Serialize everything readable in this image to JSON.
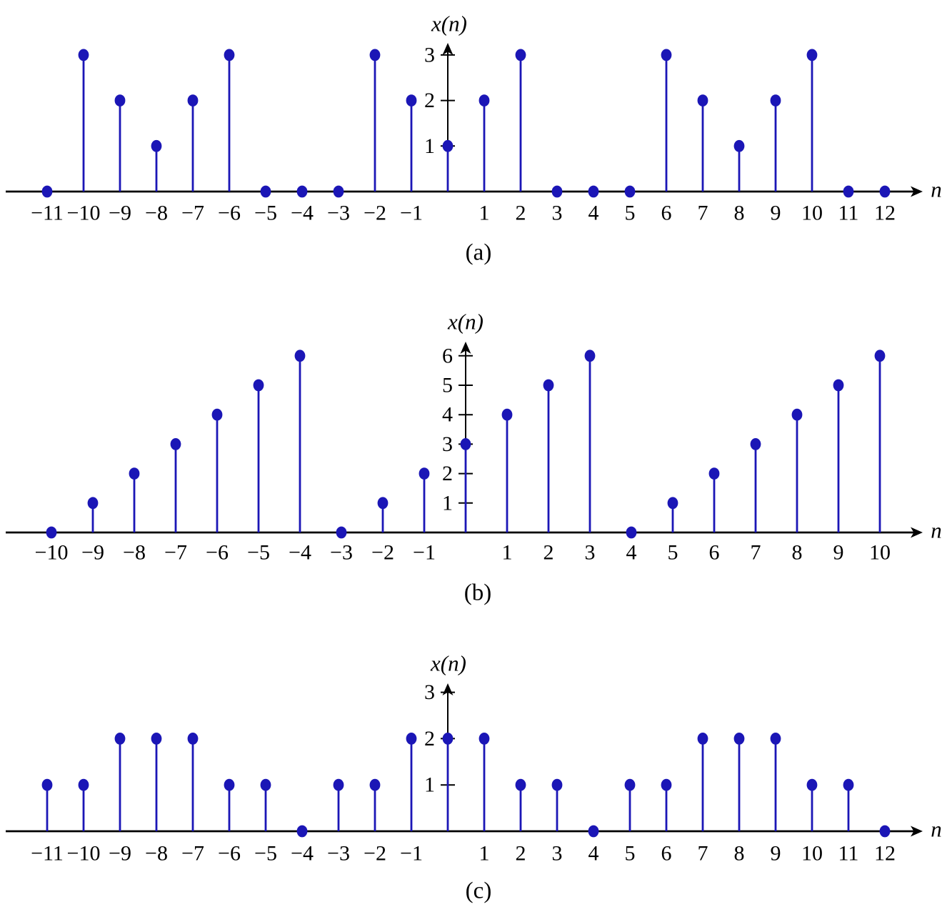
{
  "figure": {
    "colors": {
      "signal_blue": "#1b16b6",
      "axis_black": "#000000",
      "background": "#ffffff"
    }
  },
  "chart_data": [
    {
      "type": "stem",
      "caption": "(a)",
      "ylabel": "x(n)",
      "xlabel": "n",
      "x": [
        -11,
        -10,
        -9,
        -8,
        -7,
        -6,
        -5,
        -4,
        -3,
        -2,
        -1,
        0,
        1,
        2,
        3,
        4,
        5,
        6,
        7,
        8,
        9,
        10,
        11,
        12
      ],
      "values": [
        0,
        3,
        2,
        1,
        2,
        3,
        0,
        0,
        0,
        3,
        2,
        1,
        2,
        3,
        0,
        0,
        0,
        3,
        2,
        1,
        2,
        3,
        0,
        0
      ],
      "y_ticks": [
        1,
        2,
        3
      ],
      "xlim": [
        -11,
        12
      ],
      "ylim": [
        0,
        3.4
      ],
      "grid": false
    },
    {
      "type": "stem",
      "caption": "(b)",
      "ylabel": "x(n)",
      "xlabel": "n",
      "x": [
        -10,
        -9,
        -8,
        -7,
        -6,
        -5,
        -4,
        -3,
        -2,
        -1,
        0,
        1,
        2,
        3,
        4,
        5,
        6,
        7,
        8,
        9,
        10
      ],
      "values": [
        0,
        1,
        2,
        3,
        4,
        5,
        6,
        0,
        1,
        2,
        3,
        4,
        5,
        6,
        0,
        1,
        2,
        3,
        4,
        5,
        6
      ],
      "y_ticks": [
        1,
        2,
        3,
        4,
        5,
        6
      ],
      "xlim": [
        -10,
        10
      ],
      "ylim": [
        0,
        6.5
      ],
      "grid": false
    },
    {
      "type": "stem",
      "caption": "(c)",
      "ylabel": "x(n)",
      "xlabel": "n",
      "x": [
        -11,
        -10,
        -9,
        -8,
        -7,
        -6,
        -5,
        -4,
        -3,
        -2,
        -1,
        0,
        1,
        2,
        3,
        4,
        5,
        6,
        7,
        8,
        9,
        10,
        11,
        12
      ],
      "values": [
        1,
        1,
        2,
        2,
        2,
        1,
        1,
        0,
        1,
        1,
        2,
        2,
        2,
        1,
        1,
        0,
        1,
        1,
        2,
        2,
        2,
        1,
        1,
        0
      ],
      "y_ticks": [
        1,
        2,
        3
      ],
      "xlim": [
        -11,
        12
      ],
      "ylim": [
        0,
        3.4
      ],
      "grid": false
    }
  ]
}
